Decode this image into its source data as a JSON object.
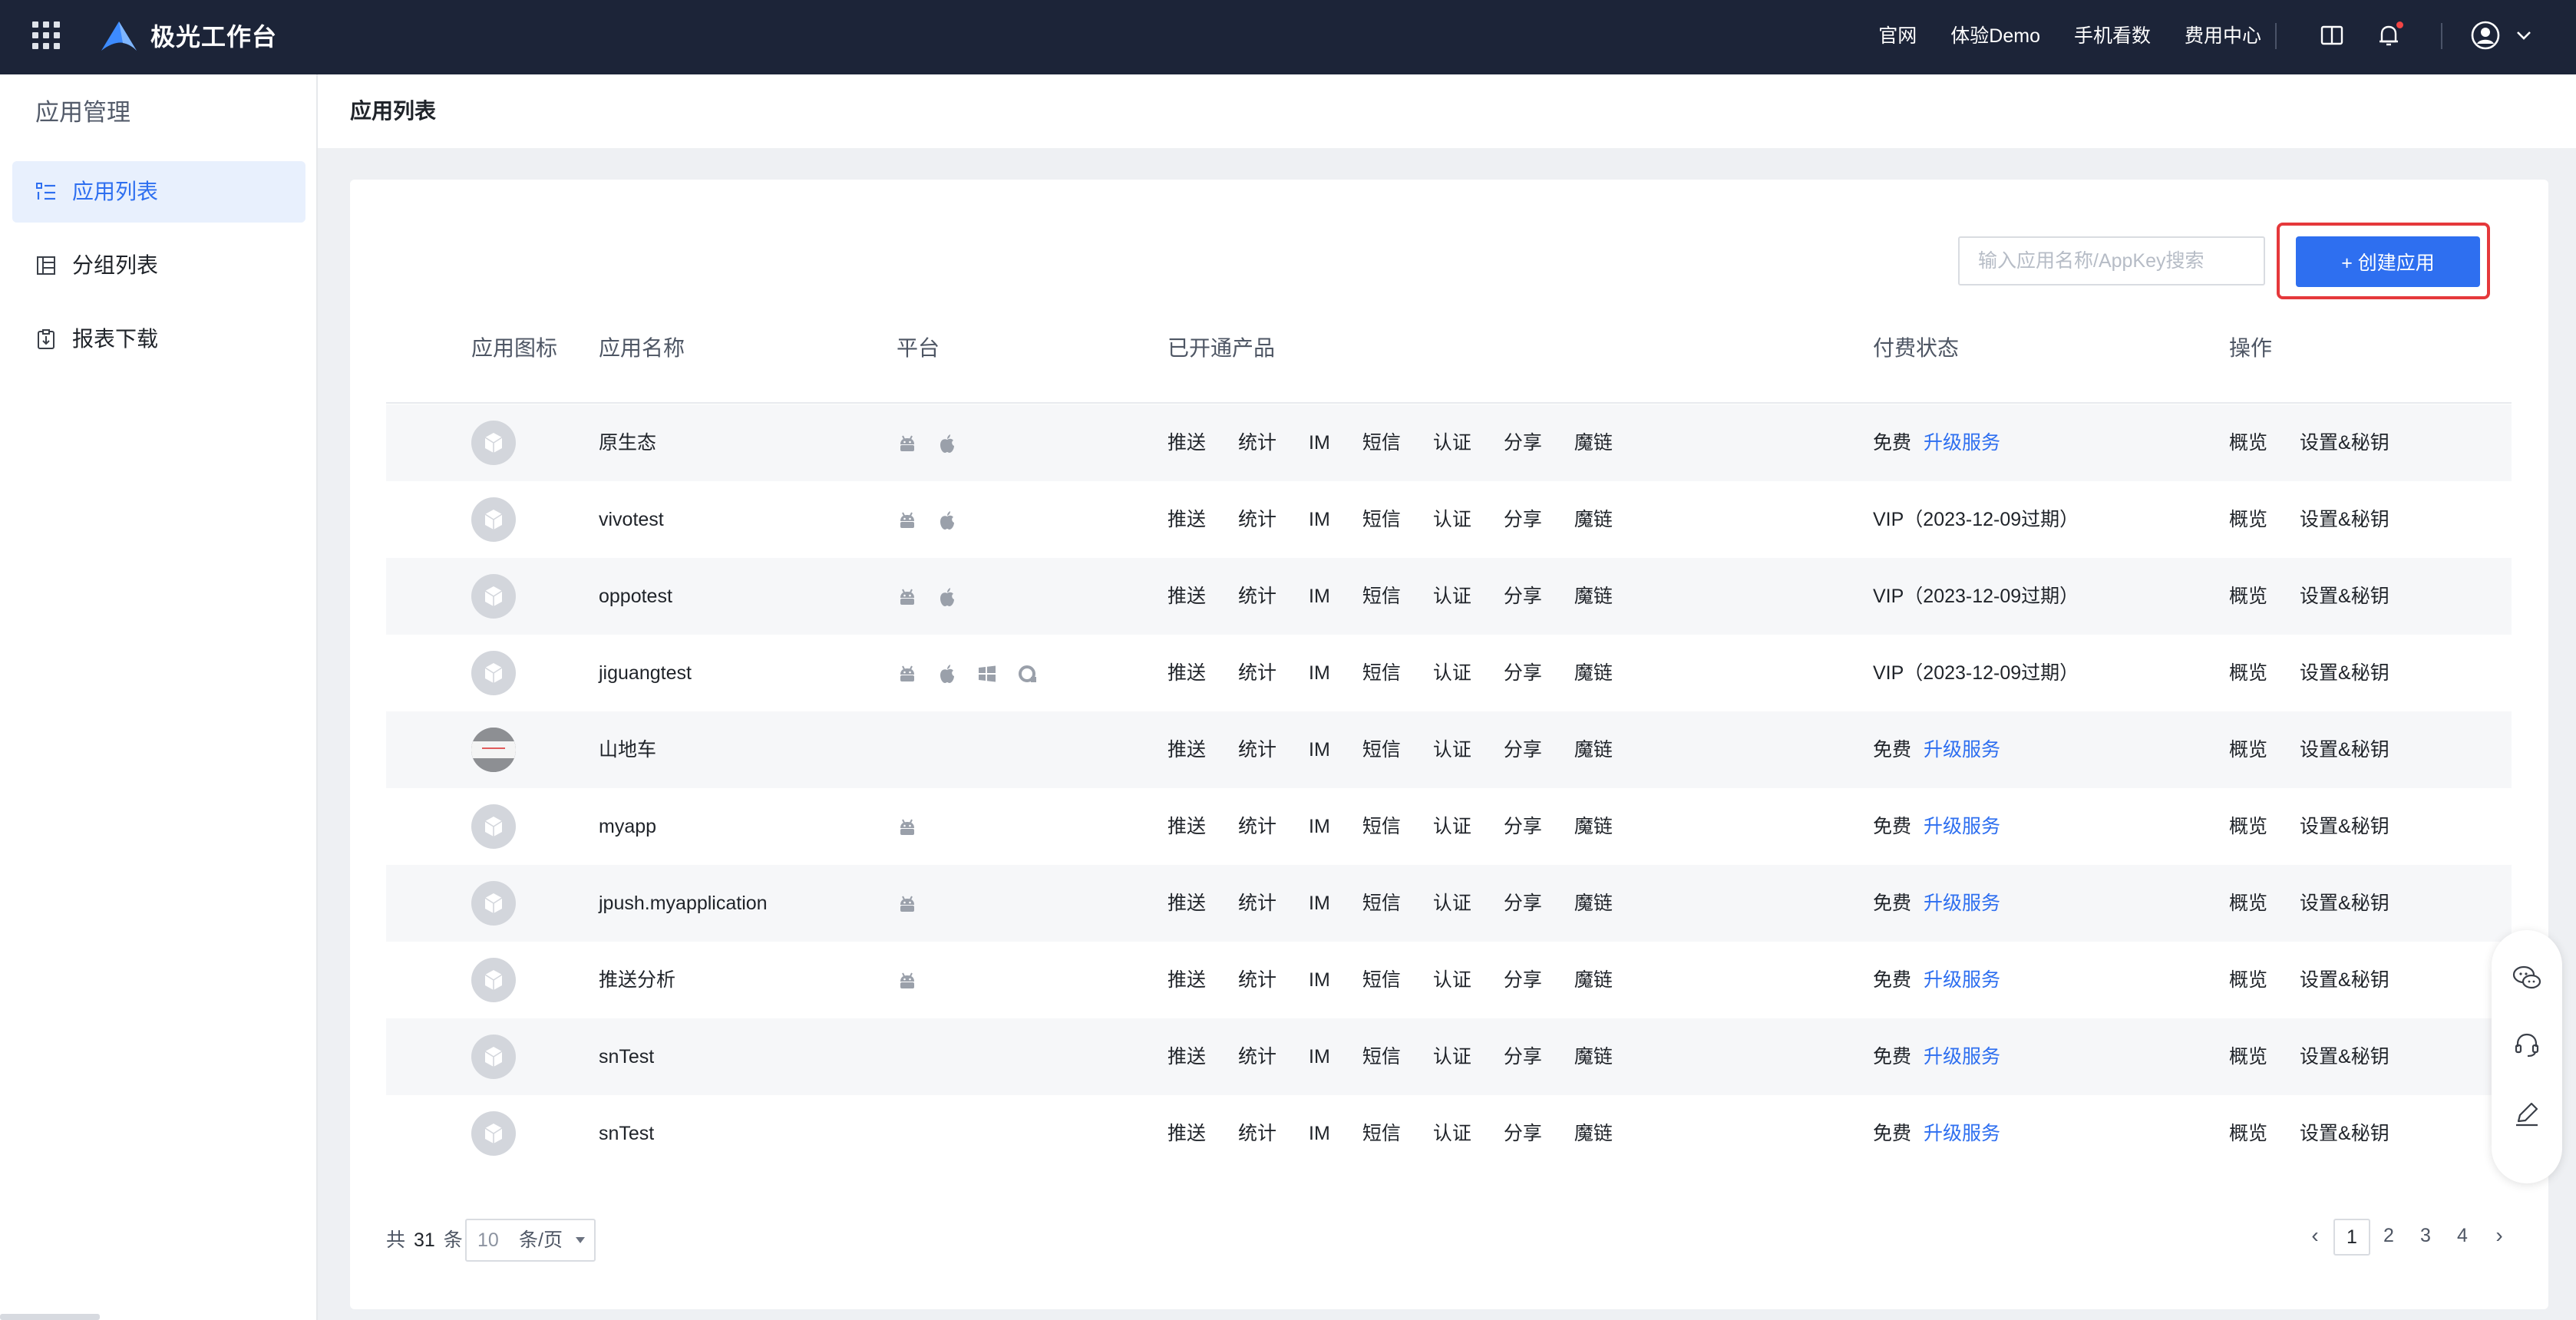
{
  "header": {
    "brand": "极光工作台",
    "nav": [
      "官网",
      "体验Demo",
      "手机看数",
      "费用中心"
    ],
    "icons": [
      "apps-grid-icon",
      "book-icon",
      "bell-icon",
      "user-avatar-icon",
      "chevron-down-icon"
    ]
  },
  "sidebar": {
    "title": "应用管理",
    "items": [
      {
        "label": "应用列表",
        "icon": "list-icon",
        "active": true
      },
      {
        "label": "分组列表",
        "icon": "group-list-icon",
        "active": false
      },
      {
        "label": "报表下载",
        "icon": "report-download-icon",
        "active": false
      }
    ]
  },
  "page": {
    "title": "应用列表",
    "search_placeholder": "输入应用名称/AppKey搜索",
    "create_label": "+ 创建应用"
  },
  "colors": {
    "topbar": "#1c2438",
    "accent": "#2e6ff0",
    "highlight": "#e5383b"
  },
  "table": {
    "headers": [
      "应用图标",
      "应用名称",
      "平台",
      "已开通产品",
      "付费状态",
      "操作"
    ],
    "products": [
      "推送",
      "统计",
      "IM",
      "短信",
      "认证",
      "分享",
      "魔链"
    ],
    "operations": [
      "概览",
      "设置&秘钥"
    ],
    "upgrade_label": "升级服务",
    "rows": [
      {
        "name": "原生态",
        "platforms": [
          "android",
          "apple"
        ],
        "status": "免费",
        "upgrade": true,
        "icon": "default"
      },
      {
        "name": "vivotest",
        "platforms": [
          "android",
          "apple"
        ],
        "status": "VIP（2023-12-09过期）",
        "upgrade": false,
        "icon": "default"
      },
      {
        "name": "oppotest",
        "platforms": [
          "android",
          "apple"
        ],
        "status": "VIP（2023-12-09过期）",
        "upgrade": false,
        "icon": "default"
      },
      {
        "name": "jiguangtest",
        "platforms": [
          "android",
          "apple",
          "windows",
          "quickapp"
        ],
        "status": "VIP（2023-12-09过期）",
        "upgrade": false,
        "icon": "default"
      },
      {
        "name": "山地车",
        "platforms": [],
        "status": "免费",
        "upgrade": true,
        "icon": "image"
      },
      {
        "name": "myapp",
        "platforms": [
          "android"
        ],
        "status": "免费",
        "upgrade": true,
        "icon": "default"
      },
      {
        "name": "jpush.myapplication",
        "platforms": [
          "android"
        ],
        "status": "免费",
        "upgrade": true,
        "icon": "default"
      },
      {
        "name": "推送分析",
        "platforms": [
          "android"
        ],
        "status": "免费",
        "upgrade": true,
        "icon": "default"
      },
      {
        "name": "snTest",
        "platforms": [],
        "status": "免费",
        "upgrade": true,
        "icon": "default"
      },
      {
        "name": "snTest",
        "platforms": [],
        "status": "免费",
        "upgrade": true,
        "icon": "default"
      }
    ]
  },
  "pagination": {
    "total_prefix": "共",
    "total": "31",
    "total_suffix": "条",
    "page_size": "10",
    "page_size_unit": "条/页",
    "pages": [
      "1",
      "2",
      "3",
      "4"
    ],
    "current": "1"
  },
  "float_tools": [
    "wechat-chat-icon",
    "customer-service-icon",
    "feedback-edit-icon"
  ]
}
